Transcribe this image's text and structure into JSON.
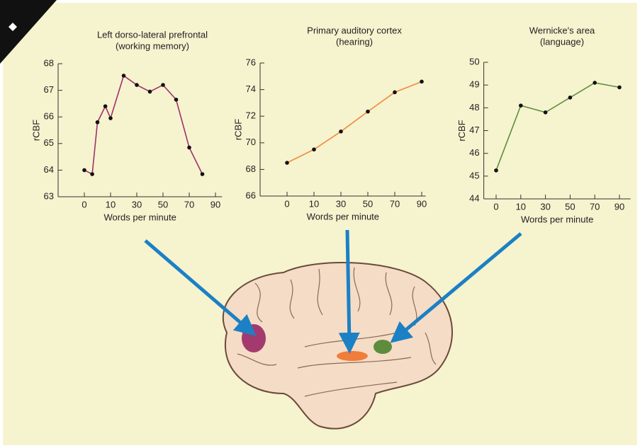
{
  "chart_data": [
    {
      "type": "line",
      "title": "Left dorso-lateral prefrontal",
      "subtitle": "(working memory)",
      "x_label": "Words per minute",
      "y_label": "rCBF",
      "x": [
        0,
        3,
        5,
        8,
        10,
        20,
        30,
        40,
        50,
        60,
        70,
        80
      ],
      "values": [
        64.0,
        63.85,
        65.8,
        66.4,
        65.95,
        67.55,
        67.2,
        66.95,
        67.2,
        66.65,
        64.85,
        63.85
      ],
      "color": "#a0306a",
      "xlim": [
        -10,
        95
      ],
      "xticks": [
        0,
        10,
        30,
        50,
        70,
        90
      ],
      "ylim": [
        63,
        68
      ],
      "yticks": [
        63,
        64,
        65,
        66,
        67,
        68
      ]
    },
    {
      "type": "line",
      "title": "Primary auditory cortex",
      "subtitle": "(hearing)",
      "x_label": "Words per minute",
      "y_label": "rCBF",
      "x": [
        0,
        10,
        30,
        50,
        70,
        90
      ],
      "values": [
        68.5,
        69.5,
        70.85,
        72.35,
        73.8,
        74.6
      ],
      "color": "#f08a3c",
      "xlim": [
        -10,
        93
      ],
      "xticks": [
        0,
        10,
        30,
        50,
        70,
        90
      ],
      "ylim": [
        66,
        76
      ],
      "yticks": [
        66,
        68,
        70,
        72,
        74,
        76
      ]
    },
    {
      "type": "line",
      "title": "Wernicke's area",
      "subtitle": "(language)",
      "x_label": "Words per minute",
      "y_label": "rCBF",
      "x": [
        0,
        10,
        30,
        50,
        70,
        90
      ],
      "values": [
        45.25,
        48.1,
        47.8,
        48.45,
        49.1,
        48.9
      ],
      "color": "#5d8f3c",
      "xlim": [
        -5,
        99
      ],
      "xticks": [
        0,
        10,
        30,
        50,
        70,
        90
      ],
      "ylim": [
        44,
        50
      ],
      "yticks": [
        44,
        45,
        46,
        47,
        48,
        49,
        50
      ]
    }
  ]
}
